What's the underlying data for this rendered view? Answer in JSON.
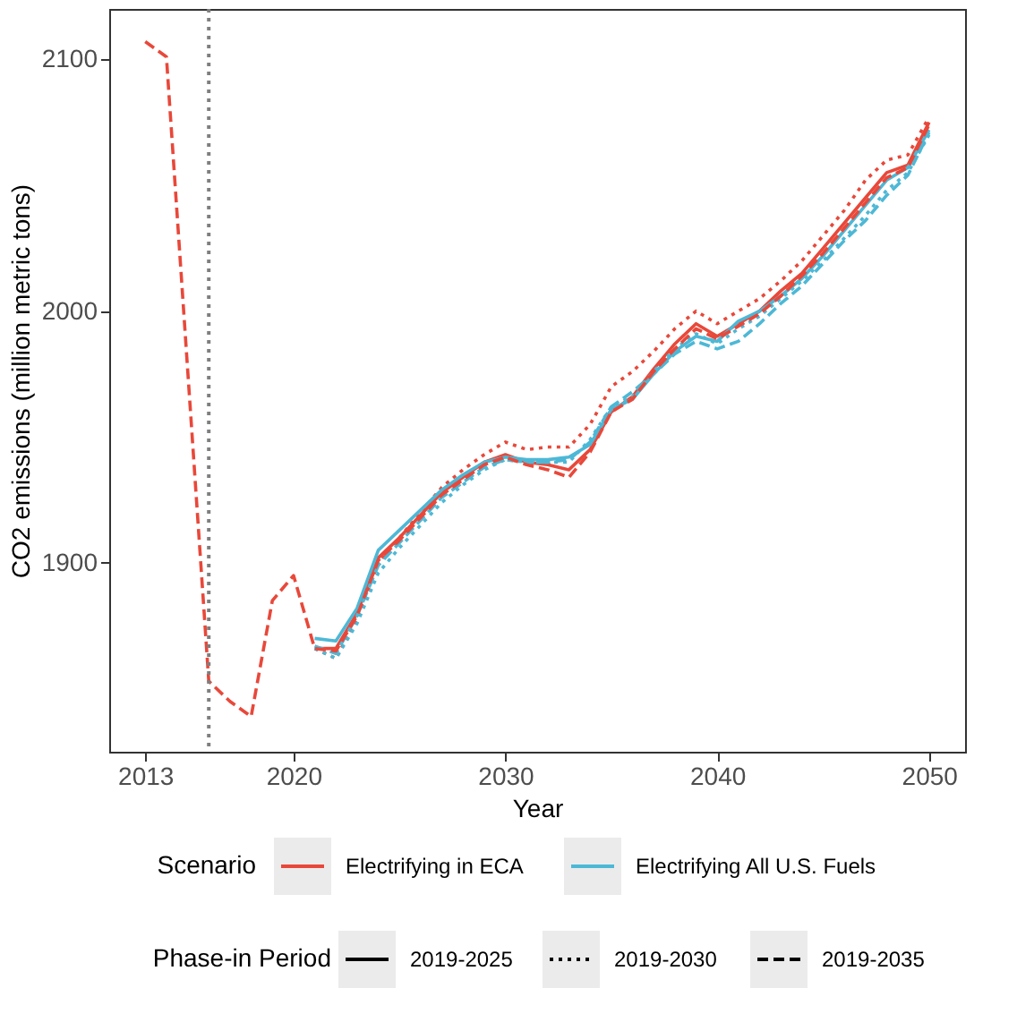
{
  "chart_data": {
    "type": "line",
    "xlabel": "Year",
    "ylabel": "CO2 emissions (million metric tons)",
    "legend_title": [
      "Scenario",
      "Phase-in Period"
    ],
    "legend": "bottom",
    "grid": false,
    "marker": "none",
    "annotations": [
      "2019-2025",
      "2019-2030",
      "2019-2035"
    ],
    "xlim": [
      2011.3,
      2051.7
    ],
    "ylim": [
      1825,
      2120
    ],
    "xticks": [
      2013,
      2020,
      2030,
      2040,
      2050
    ],
    "yticks": [
      1900,
      2000,
      2100
    ],
    "x": [
      2013,
      2014,
      2016,
      2017,
      2018,
      2019,
      2020,
      2021,
      2022,
      2023,
      2024,
      2025,
      2026,
      2027,
      2028,
      2029,
      2030,
      2031,
      2032,
      2033,
      2034,
      2035,
      2036,
      2037,
      2038,
      2039,
      2040,
      2041,
      2042,
      2043,
      2044,
      2045,
      2046,
      2047,
      2048,
      2049,
      2050
    ],
    "ref_lines": [
      {
        "axis": "x",
        "value": 2016,
        "color": "#7f7f7f",
        "line_style": "dotted"
      }
    ],
    "series": [
      {
        "name": "Electrifying in ECA",
        "line_style": "solid",
        "color": "#e8483a",
        "values": [
          null,
          null,
          null,
          null,
          null,
          null,
          null,
          1866,
          1866,
          1880,
          1902,
          1910,
          1919,
          1928,
          1934,
          1940,
          1943,
          1940,
          1939,
          1937,
          1945,
          1960,
          1966,
          1977,
          1987,
          1995,
          1990,
          1995,
          2000,
          2008,
          2015,
          2025,
          2035,
          2045,
          2055,
          2058,
          2075
        ]
      },
      {
        "line_style": "dotted",
        "color": "#e8483a",
        "values": [
          null,
          null,
          null,
          null,
          null,
          null,
          null,
          1866,
          1862,
          1878,
          1900,
          1910,
          1920,
          1930,
          1937,
          1943,
          1948,
          1945,
          1946,
          1946,
          1955,
          1970,
          1976,
          1984,
          1993,
          2000,
          1995,
          2000,
          2005,
          2012,
          2020,
          2030,
          2040,
          2052,
          2060,
          2062,
          2077
        ]
      },
      {
        "name": "Electrifying All U.S. Fuels",
        "line_style": "solid",
        "color": "#4db8d6",
        "values": [
          null,
          null,
          null,
          null,
          null,
          null,
          null,
          1870,
          1869,
          1882,
          1905,
          1913,
          1921,
          1929,
          1935,
          1940,
          1942,
          1941,
          1941,
          1942,
          1947,
          1961,
          1965,
          1975,
          1984,
          1990,
          1988,
          1996,
          2000,
          2006,
          2013,
          2022,
          2032,
          2042,
          2052,
          2057,
          2072
        ]
      },
      {
        "line_style": "dotted",
        "color": "#4db8d6",
        "values": [
          null,
          null,
          null,
          null,
          null,
          null,
          null,
          1866,
          1862,
          1876,
          1896,
          1906,
          1915,
          1924,
          1931,
          1937,
          1941,
          1940,
          1940,
          1940,
          1949,
          1962,
          1966,
          1976,
          1985,
          1991,
          1987,
          1993,
          1998,
          2005,
          2012,
          2020,
          2029,
          2038,
          2048,
          2055,
          2070
        ]
      },
      {
        "line_style": "dashed",
        "color": "#4db8d6",
        "values": [
          null,
          null,
          null,
          null,
          null,
          null,
          null,
          1867,
          1864,
          1879,
          1899,
          1908,
          1917,
          1926,
          1932,
          1938,
          1941,
          1940,
          1940,
          1941,
          1948,
          1962,
          1968,
          1975,
          1983,
          1988,
          1985,
          1988,
          1995,
          2003,
          2010,
          2019,
          2028,
          2036,
          2046,
          2054,
          2071
        ]
      },
      {
        "line_style": "dashed",
        "color": "#e8483a",
        "values": [
          2107,
          2101,
          1853,
          1845,
          1839,
          1885,
          1895,
          1866,
          1865,
          1879,
          1901,
          1909,
          1918,
          1927,
          1933,
          1939,
          1942,
          1939,
          1937,
          1934,
          1944,
          1960,
          1965,
          1976,
          1985,
          1993,
          1989,
          1994,
          1999,
          2006,
          2014,
          2023,
          2033,
          2043,
          2053,
          2057,
          2074
        ]
      }
    ]
  }
}
